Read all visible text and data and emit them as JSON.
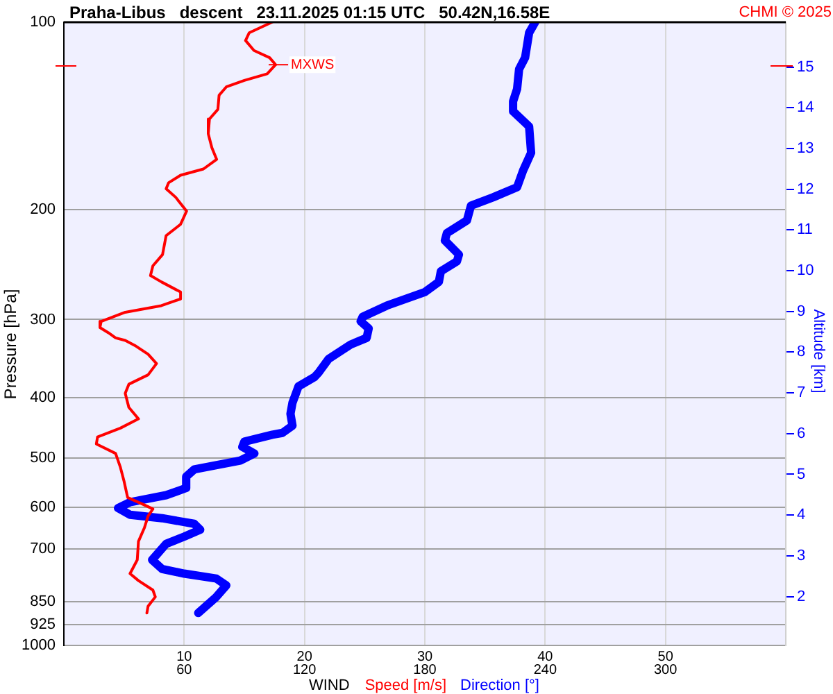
{
  "chart_data": {
    "type": "line",
    "title": "Praha-Libus   descent   23.11.2025 01:15 UTC   50.42N,16.58E",
    "xlabel": "WIND",
    "ylabel": "Pressure [hPa]",
    "y2label": "Altitude [km]",
    "annotations": [
      {
        "text": "MXWS",
        "x": 17.6,
        "y": 117
      },
      "CHMI © 2025"
    ],
    "series": [
      {
        "name": "Speed [m/s]",
        "color": "#ff0000",
        "x": [
          17.3,
          15.4,
          15.1,
          15.8,
          17.1,
          17.6,
          16.9,
          15.0,
          13.5,
          12.9,
          12.8,
          12.1,
          12.0,
          12.3,
          12.7,
          11.6,
          9.7,
          8.7,
          8.5,
          9.3,
          10.2,
          9.7,
          8.5,
          8.2,
          7.4,
          7.2,
          8.1,
          9.7,
          9.7,
          8.1,
          5.1,
          3.1,
          3.0,
          3.7,
          4.3,
          5.1,
          6.0,
          7.0,
          7.7,
          7.0,
          5.4,
          5.1,
          5.4,
          6.2,
          4.7,
          2.8,
          2.7,
          4.3,
          4.7,
          5.0,
          5.3,
          6.6,
          7.4,
          7.0,
          6.7,
          6.2,
          6.1,
          5.5,
          6.2,
          7.4,
          7.6,
          7.0,
          6.9
        ],
        "values": [
          100,
          104,
          107,
          111,
          114,
          117,
          121,
          124,
          127,
          131,
          138,
          143,
          151,
          159,
          166,
          172,
          176,
          181,
          185,
          191,
          201,
          211,
          220,
          236,
          246,
          255,
          261,
          271,
          278,
          285,
          292,
          302,
          309,
          315,
          321,
          324,
          331,
          341,
          353,
          368,
          381,
          394,
          415,
          433,
          448,
          463,
          475,
          492,
          518,
          545,
          579,
          594,
          604,
          620,
          647,
          681,
          729,
          767,
          787,
          815,
          836,
          865,
          887
        ]
      },
      {
        "name": "Direction [°]",
        "color": "#0000ff",
        "axis": "x2",
        "x": [
          235,
          232,
          230,
          227,
          226,
          224,
          224,
          232,
          233,
          229,
          226,
          214,
          203,
          201,
          191,
          190,
          197,
          196,
          188,
          187,
          180,
          161,
          149,
          148,
          152,
          151,
          143,
          132,
          127,
          125,
          117,
          114,
          113,
          114,
          109,
          104,
          90,
          89,
          95,
          88,
          65,
          61,
          61,
          51,
          33,
          27,
          33,
          49,
          65,
          68,
          60,
          51,
          44,
          49,
          60,
          76,
          81,
          76,
          67
        ],
        "values": [
          100,
          104,
          114,
          119,
          128,
          134,
          139,
          147,
          162,
          173,
          184,
          191,
          197,
          208,
          218,
          224,
          236,
          242,
          251,
          261,
          271,
          285,
          297,
          302,
          310,
          321,
          329,
          347,
          365,
          371,
          384,
          408,
          425,
          444,
          456,
          459,
          471,
          480,
          492,
          505,
          522,
          536,
          559,
          574,
          589,
          602,
          617,
          625,
          638,
          652,
          669,
          687,
          729,
          754,
          767,
          781,
          801,
          836,
          887
        ]
      }
    ],
    "xlim": [
      0,
      60
    ],
    "xticks": [
      10,
      20,
      30,
      40,
      50
    ],
    "x2lim": [
      0,
      360
    ],
    "x2ticks": [
      60,
      120,
      180,
      240,
      300
    ],
    "ylim": [
      1000,
      100
    ],
    "yticks": [
      100,
      200,
      300,
      400,
      500,
      600,
      700,
      850,
      925,
      1000
    ],
    "log": "y",
    "y2lim": [
      0.8,
      16.1
    ],
    "y2ticks": [
      2,
      3,
      4,
      5,
      6,
      7,
      8,
      9,
      10,
      11,
      12,
      13,
      14,
      15
    ],
    "grid": true,
    "legend": "bottom",
    "marker": "none"
  }
}
